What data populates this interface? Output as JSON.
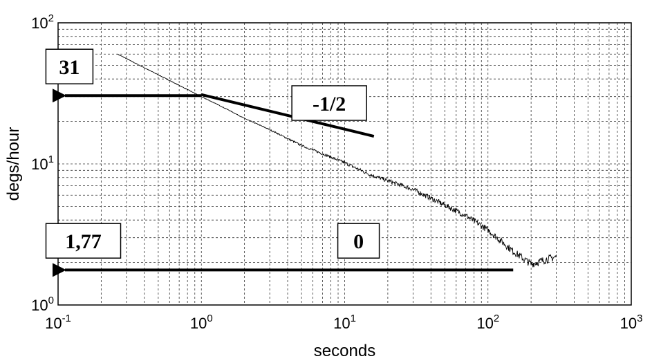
{
  "chart_data": {
    "type": "line",
    "title": "",
    "xlabel": "seconds",
    "ylabel": "degs/hour",
    "xscale": "log",
    "yscale": "log",
    "xlim": [
      0.1,
      1000
    ],
    "ylim": [
      1,
      100
    ],
    "grid": true,
    "x_ticks": [
      {
        "base": "10",
        "exp": "-1"
      },
      {
        "base": "10",
        "exp": "0"
      },
      {
        "base": "10",
        "exp": "1"
      },
      {
        "base": "10",
        "exp": "2"
      },
      {
        "base": "10",
        "exp": "3"
      }
    ],
    "y_ticks": [
      {
        "base": "10",
        "exp": "0"
      },
      {
        "base": "10",
        "exp": "1"
      },
      {
        "base": "10",
        "exp": "2"
      }
    ],
    "series": [
      {
        "x": [
          0.26,
          0.4,
          0.6,
          1.0,
          1.5,
          2.0,
          3.0,
          5.0,
          7.0,
          10,
          15,
          20,
          30,
          50,
          70,
          100,
          150,
          200,
          300
        ],
        "y": [
          60,
          48,
          39,
          30,
          24.5,
          21,
          17.5,
          13.5,
          11.8,
          10.2,
          8.4,
          7.6,
          6.6,
          5.1,
          4.3,
          3.4,
          2.4,
          1.95,
          2.2
        ]
      }
    ],
    "annotations": [
      {
        "text": "31",
        "box_x": 0.12,
        "box_y": 49
      },
      {
        "text": "-1/2",
        "box_x": 7.8,
        "box_y": 27
      },
      {
        "text": "1,77",
        "box_x": 0.15,
        "box_y": 2.85
      },
      {
        "text": "0",
        "box_x": 12.5,
        "box_y": 2.85
      }
    ],
    "reference_lines": [
      {
        "name": "slope -1/2",
        "x": [
          1,
          16
        ],
        "y": [
          31,
          15.7
        ]
      },
      {
        "name": "level 31",
        "x": [
          1,
          0.1
        ],
        "y": [
          30.5,
          30.5
        ],
        "arrow": "left"
      },
      {
        "name": "level 1.77",
        "x": [
          150,
          0.1
        ],
        "y": [
          1.77,
          1.77
        ],
        "arrow": "left"
      }
    ]
  }
}
